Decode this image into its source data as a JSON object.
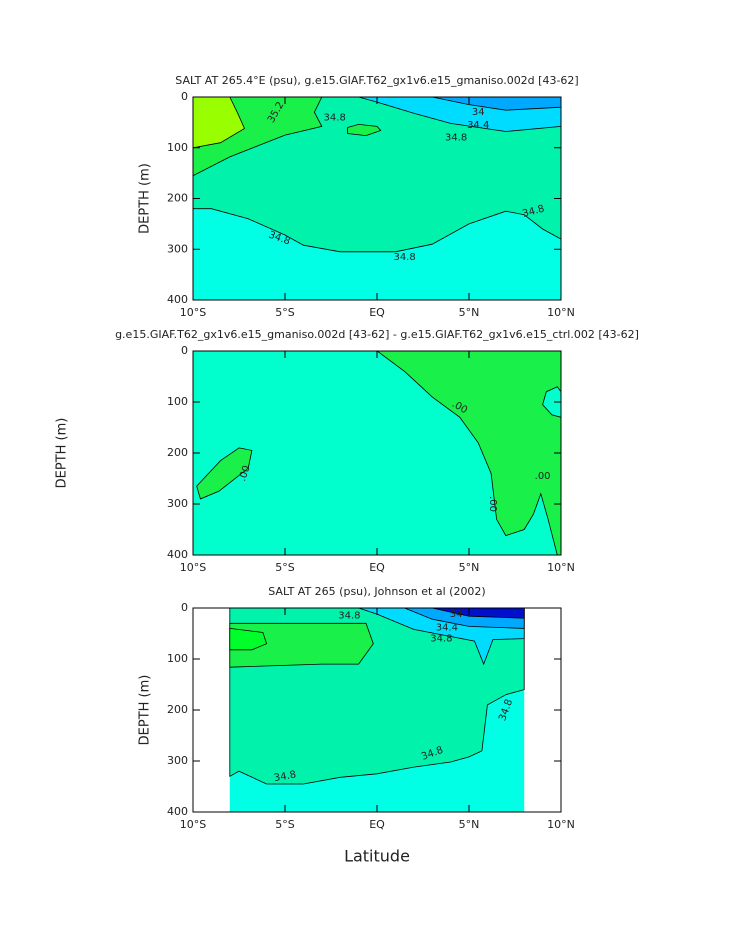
{
  "chart_data": [
    {
      "type": "contour",
      "title": "SALT AT 265.4°E (psu), g.e15.GIAF.T62_gx1v6.e15_gmaniso.002d [43-62]",
      "ylabel": "DEPTH (m)",
      "xlim": [
        -10,
        10
      ],
      "xticks": [
        {
          "value": -10,
          "label": "10°S"
        },
        {
          "value": -5,
          "label": "5°S"
        },
        {
          "value": 0,
          "label": "EQ"
        },
        {
          "value": 5,
          "label": "5°N"
        },
        {
          "value": 10,
          "label": "10°N"
        }
      ],
      "ylim": [
        0,
        400
      ],
      "y_inverted": true,
      "yticks": [
        0,
        100,
        200,
        300,
        400
      ],
      "fill_colors": [
        "#00ffe4",
        "#00f2ab",
        "#1af04a",
        "#99ff00",
        "#00dcff",
        "#00a8ff"
      ],
      "contour_labels": [
        35.2,
        34.8,
        34,
        34.4,
        34.8,
        34.8,
        34.8,
        34.8
      ]
    },
    {
      "type": "contour",
      "title": "g.e15.GIAF.T62_gx1v6.e15_gmaniso.002d [43-62] - g.e15.GIAF.T62_gx1v6.e15_ctrl.002 [43-62]",
      "ylabel": "DEPTH (m)",
      "xlim": [
        -10,
        10
      ],
      "xticks": [
        {
          "value": -10,
          "label": "10°S"
        },
        {
          "value": -5,
          "label": "5°S"
        },
        {
          "value": 0,
          "label": "EQ"
        },
        {
          "value": 5,
          "label": "5°N"
        },
        {
          "value": 10,
          "label": "10°N"
        }
      ],
      "ylim": [
        0,
        400
      ],
      "y_inverted": true,
      "yticks": [
        0,
        100,
        200,
        300,
        400
      ],
      "fill_colors": [
        "#00ffcc",
        "#1af04a"
      ],
      "contour_labels": [
        {
          "value": 0,
          "label": ".00"
        },
        {
          "value": 0,
          "label": ".00"
        },
        {
          "value": 0,
          "label": ".00"
        },
        {
          "value": 0,
          "label": ".00"
        }
      ]
    },
    {
      "type": "contour",
      "title": "SALT AT 265 (psu), Johnson et al (2002)",
      "ylabel": "DEPTH (m)",
      "xlabel": "Latitude",
      "xlim": [
        -10,
        10
      ],
      "xticks": [
        {
          "value": -10,
          "label": "10°S"
        },
        {
          "value": -5,
          "label": "5°S"
        },
        {
          "value": 0,
          "label": "EQ"
        },
        {
          "value": 5,
          "label": "5°N"
        },
        {
          "value": 10,
          "label": "10°N"
        }
      ],
      "ylim": [
        0,
        400
      ],
      "y_inverted": true,
      "yticks": [
        0,
        100,
        200,
        300,
        400
      ],
      "fill_colors": [
        "#00ffe4",
        "#00f2ab",
        "#1af04a",
        "#00ff2a",
        "#00dcff",
        "#00a8ff",
        "#0010cc"
      ],
      "contour_labels": [
        34.8,
        34,
        34.4,
        34.8,
        34.8,
        34.8,
        34.8
      ]
    }
  ]
}
